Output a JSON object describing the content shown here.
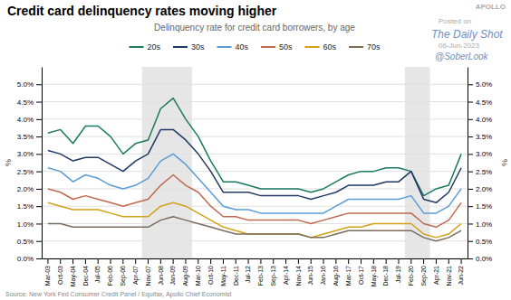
{
  "chart_data": {
    "type": "line",
    "title": "Credit card delinquency rates moving higher",
    "subtitle": "Delinquency rate for credit card borrowers, by age",
    "source": "Source: New York Fed Consumer Credit Panel / Equifax, Apollo Chief Economist",
    "annotations": [
      "Posted on",
      "The Daily Shot",
      "06-Jun-2023",
      "@SoberLook",
      "APOLLO"
    ],
    "ylabel": "%",
    "y2label": "%",
    "categories": [
      "Mar-03",
      "Oct-03",
      "May-04",
      "Dec-04",
      "Jul-05",
      "Feb-06",
      "Sep-06",
      "Apr-07",
      "Nov-07",
      "Jun-08",
      "Jan-09",
      "Aug-09",
      "Mar-10",
      "Oct-10",
      "May-11",
      "Dec-11",
      "Jul-12",
      "Feb-13",
      "Sep-13",
      "Apr-14",
      "Nov-14",
      "Jun-15",
      "Jan-16",
      "Aug-16",
      "Mar-17",
      "Oct-17",
      "May-18",
      "Dec-18",
      "Jul-19",
      "Feb-20",
      "Sep-20",
      "Apr-21",
      "Nov-21",
      "Jun-22"
    ],
    "bands": [
      {
        "start": "Nov-07",
        "end": "Aug-09"
      },
      {
        "start": "Feb-20",
        "end": "Sep-20"
      }
    ],
    "series": [
      {
        "name": "20s",
        "color": "#1a7a5e",
        "values": [
          0.036,
          0.037,
          0.033,
          0.038,
          0.038,
          0.035,
          0.03,
          0.033,
          0.034,
          0.043,
          0.046,
          0.04,
          0.035,
          0.028,
          0.022,
          0.022,
          0.021,
          0.02,
          0.02,
          0.02,
          0.02,
          0.019,
          0.02,
          0.022,
          0.024,
          0.025,
          0.025,
          0.026,
          0.026,
          0.025,
          0.018,
          0.02,
          0.021,
          0.03
        ]
      },
      {
        "name": "30s",
        "color": "#1f3864",
        "values": [
          0.031,
          0.03,
          0.028,
          0.029,
          0.029,
          0.027,
          0.025,
          0.028,
          0.03,
          0.037,
          0.037,
          0.034,
          0.03,
          0.025,
          0.019,
          0.019,
          0.019,
          0.018,
          0.018,
          0.018,
          0.018,
          0.017,
          0.018,
          0.019,
          0.021,
          0.021,
          0.021,
          0.022,
          0.022,
          0.025,
          0.017,
          0.016,
          0.019,
          0.026
        ]
      },
      {
        "name": "40s",
        "color": "#5b9bd5",
        "values": [
          0.026,
          0.025,
          0.022,
          0.024,
          0.023,
          0.021,
          0.02,
          0.021,
          0.023,
          0.028,
          0.03,
          0.027,
          0.023,
          0.019,
          0.015,
          0.014,
          0.014,
          0.013,
          0.013,
          0.013,
          0.013,
          0.013,
          0.013,
          0.015,
          0.017,
          0.017,
          0.017,
          0.017,
          0.017,
          0.018,
          0.013,
          0.013,
          0.015,
          0.02
        ]
      },
      {
        "name": "50s",
        "color": "#c0694f",
        "values": [
          0.02,
          0.019,
          0.017,
          0.018,
          0.017,
          0.016,
          0.015,
          0.016,
          0.017,
          0.021,
          0.024,
          0.021,
          0.019,
          0.015,
          0.012,
          0.012,
          0.011,
          0.011,
          0.011,
          0.011,
          0.011,
          0.01,
          0.011,
          0.012,
          0.013,
          0.013,
          0.013,
          0.013,
          0.013,
          0.013,
          0.01,
          0.009,
          0.011,
          0.016
        ]
      },
      {
        "name": "60s",
        "color": "#d4a017",
        "values": [
          0.016,
          0.015,
          0.014,
          0.014,
          0.014,
          0.013,
          0.012,
          0.012,
          0.012,
          0.015,
          0.016,
          0.015,
          0.013,
          0.011,
          0.009,
          0.008,
          0.007,
          0.007,
          0.007,
          0.007,
          0.007,
          0.006,
          0.007,
          0.008,
          0.009,
          0.009,
          0.01,
          0.01,
          0.01,
          0.01,
          0.007,
          0.006,
          0.007,
          0.01
        ]
      },
      {
        "name": "70s",
        "color": "#7a6c5d",
        "values": [
          0.01,
          0.01,
          0.009,
          0.009,
          0.009,
          0.009,
          0.009,
          0.009,
          0.009,
          0.011,
          0.012,
          0.011,
          0.01,
          0.009,
          0.008,
          0.007,
          0.007,
          0.007,
          0.007,
          0.007,
          0.007,
          0.006,
          0.006,
          0.007,
          0.008,
          0.008,
          0.008,
          0.008,
          0.008,
          0.008,
          0.006,
          0.005,
          0.006,
          0.008
        ]
      }
    ],
    "ylim": [
      0.0,
      0.055
    ],
    "yticks": [
      {
        "value": 0.0,
        "label": "0.0%"
      },
      {
        "value": 0.005,
        "label": "0.5%"
      },
      {
        "value": 0.01,
        "label": "1.0%"
      },
      {
        "value": 0.015,
        "label": "1.5%"
      },
      {
        "value": 0.02,
        "label": "2.0%"
      },
      {
        "value": 0.025,
        "label": "2.5%"
      },
      {
        "value": 0.03,
        "label": "3.0%"
      },
      {
        "value": 0.035,
        "label": "3.5%"
      },
      {
        "value": 0.04,
        "label": "4.0%"
      },
      {
        "value": 0.045,
        "label": "4.5%"
      },
      {
        "value": 0.05,
        "label": "5.0%"
      }
    ],
    "y2lim": [
      0.0,
      0.055
    ],
    "y2ticks": [
      {
        "value": 0.0,
        "label": "0.0%"
      },
      {
        "value": 0.005,
        "label": "0.5%"
      },
      {
        "value": 0.01,
        "label": "1.0%"
      },
      {
        "value": 0.015,
        "label": "1.5%"
      },
      {
        "value": 0.02,
        "label": "2.0%"
      },
      {
        "value": 0.025,
        "label": "2.5%"
      },
      {
        "value": 0.03,
        "label": "3.0%"
      },
      {
        "value": 0.035,
        "label": "3.5%"
      },
      {
        "value": 0.04,
        "label": "4.0%"
      },
      {
        "value": 0.045,
        "label": "4.5%"
      },
      {
        "value": 0.05,
        "label": "5.0%"
      }
    ],
    "grid": true,
    "legend": "top"
  }
}
